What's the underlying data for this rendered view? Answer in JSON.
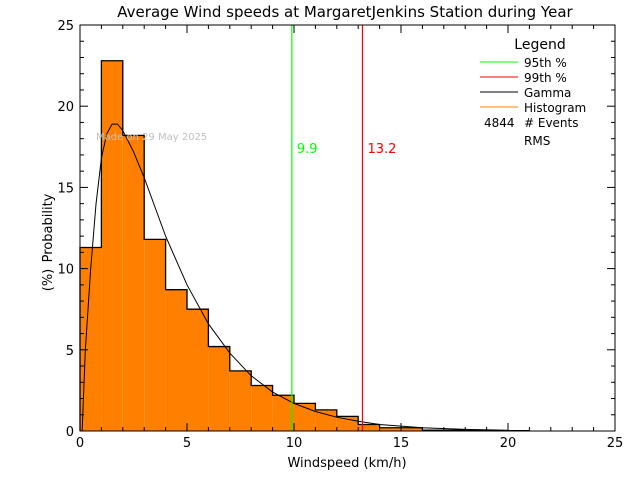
{
  "chart_data": {
    "type": "bar",
    "title": "Average Wind speeds at MargaretJenkins Station during Year",
    "xlabel": "Windspeed (km/h)",
    "ylabel": "Probability",
    "ylabel_unit": "(%)",
    "xlim": [
      0,
      25
    ],
    "ylim": [
      0,
      25
    ],
    "xticks": [
      "0",
      "5",
      "10",
      "15",
      "20",
      "25"
    ],
    "yticks": [
      "0",
      "5",
      "10",
      "15",
      "20",
      "25"
    ],
    "grid": false,
    "watermark": "Made on 29 May 2025",
    "histogram": {
      "bin_edges": [
        0,
        1,
        2,
        3,
        4,
        5,
        6,
        7,
        8,
        9,
        10,
        11,
        12,
        13,
        14,
        15,
        16,
        17,
        18,
        19,
        20,
        21
      ],
      "values": [
        11.3,
        22.8,
        18.2,
        11.8,
        8.7,
        7.5,
        5.2,
        3.7,
        2.8,
        2.2,
        1.7,
        1.3,
        0.9,
        0.4,
        0.2,
        0.2,
        0.05,
        0.05,
        0.03,
        0.02,
        0.02
      ],
      "color": "#ff8000"
    },
    "gamma_curve": {
      "x": [
        0.1,
        0.25,
        0.5,
        0.75,
        1,
        1.25,
        1.5,
        1.75,
        2,
        2.5,
        3,
        3.5,
        4,
        5,
        6,
        7,
        8,
        9,
        10,
        11,
        12,
        13,
        14,
        16,
        18,
        20
      ],
      "y": [
        0,
        5,
        10,
        14,
        16.8,
        18.3,
        18.9,
        18.9,
        18.5,
        17.2,
        15.6,
        13.8,
        12,
        9.0,
        6.6,
        4.8,
        3.4,
        2.4,
        1.7,
        1.2,
        0.85,
        0.6,
        0.4,
        0.2,
        0.1,
        0.05
      ],
      "color": "#000000"
    },
    "percentiles": [
      {
        "name": "95th %",
        "value": 9.9,
        "label": "9.9",
        "color": "#00ff00"
      },
      {
        "name": "99th %",
        "value": 13.2,
        "label": "13.2",
        "color": "#ff0000"
      }
    ],
    "legend": {
      "title": "Legend",
      "position": "top-right",
      "entries": [
        {
          "name": "95th %",
          "color": "#00ff00"
        },
        {
          "name": "99th %",
          "color": "#ff0000"
        },
        {
          "name": "Gamma",
          "color": "#000000"
        },
        {
          "name": "Histogram",
          "color": "#ff8000"
        }
      ],
      "events_count": "4844",
      "events_label": "# Events",
      "rms_label": "RMS"
    }
  }
}
